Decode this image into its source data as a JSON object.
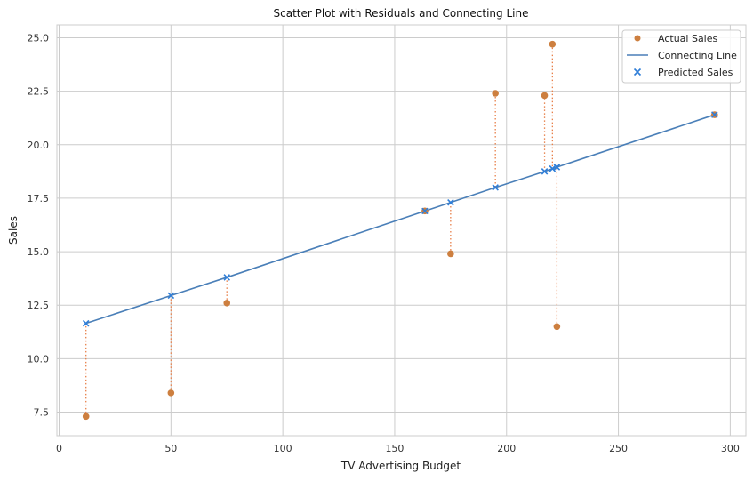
{
  "chart_data": {
    "type": "scatter",
    "title": "Scatter Plot with Residuals and Connecting Line",
    "xlabel": "TV Advertising Budget",
    "ylabel": "Sales",
    "xlim": [
      -1,
      307
    ],
    "ylim": [
      6.4,
      25.6
    ],
    "xticks": [
      0,
      50,
      100,
      150,
      200,
      250,
      300
    ],
    "yticks": [
      7.5,
      10.0,
      12.5,
      15.0,
      17.5,
      20.0,
      22.5,
      25.0
    ],
    "grid": true,
    "legend_position": "top-right",
    "series": [
      {
        "name": "Actual Sales",
        "kind": "scatter",
        "marker": "circle",
        "color": "#cd7f3f",
        "points": [
          {
            "x": 12.0,
            "y": 7.3
          },
          {
            "x": 50.0,
            "y": 8.4
          },
          {
            "x": 75.0,
            "y": 12.6
          },
          {
            "x": 163.5,
            "y": 16.9
          },
          {
            "x": 175.0,
            "y": 14.9
          },
          {
            "x": 195.0,
            "y": 22.4
          },
          {
            "x": 217.0,
            "y": 22.3
          },
          {
            "x": 220.5,
            "y": 24.7
          },
          {
            "x": 222.5,
            "y": 11.5
          },
          {
            "x": 293.0,
            "y": 21.4
          }
        ]
      },
      {
        "name": "Connecting Line",
        "kind": "line",
        "color": "#4a7fb8",
        "points": [
          {
            "x": 12.0,
            "y": 11.65
          },
          {
            "x": 50.0,
            "y": 12.95
          },
          {
            "x": 75.0,
            "y": 13.8
          },
          {
            "x": 163.5,
            "y": 16.9
          },
          {
            "x": 175.0,
            "y": 17.3
          },
          {
            "x": 195.0,
            "y": 18.0
          },
          {
            "x": 217.0,
            "y": 18.75
          },
          {
            "x": 220.5,
            "y": 18.88
          },
          {
            "x": 222.5,
            "y": 18.95
          },
          {
            "x": 293.0,
            "y": 21.4
          }
        ]
      },
      {
        "name": "Predicted Sales",
        "kind": "scatter",
        "marker": "x",
        "color": "#2f7ed8",
        "points": [
          {
            "x": 12.0,
            "y": 11.65
          },
          {
            "x": 50.0,
            "y": 12.95
          },
          {
            "x": 75.0,
            "y": 13.8
          },
          {
            "x": 163.5,
            "y": 16.9
          },
          {
            "x": 175.0,
            "y": 17.3
          },
          {
            "x": 195.0,
            "y": 18.0
          },
          {
            "x": 217.0,
            "y": 18.75
          },
          {
            "x": 220.5,
            "y": 18.88
          },
          {
            "x": 222.5,
            "y": 18.95
          },
          {
            "x": 293.0,
            "y": 21.4
          }
        ]
      }
    ],
    "residuals": {
      "style": "dotted",
      "color": "#e8804a"
    }
  }
}
